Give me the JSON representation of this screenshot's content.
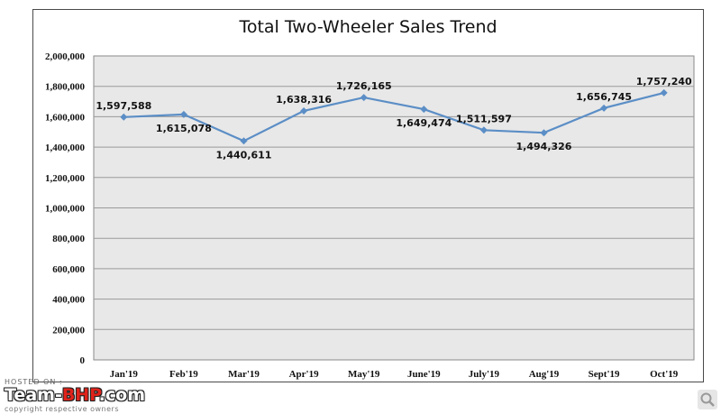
{
  "chart_data": {
    "type": "line",
    "title": "Total Two-Wheeler Sales Trend",
    "categories": [
      "Jan'19",
      "Feb'19",
      "Mar'19",
      "Apr'19",
      "May'19",
      "June'19",
      "July'19",
      "Aug'19",
      "Sept'19",
      "Oct'19"
    ],
    "series": [
      {
        "values": [
          1597588,
          1615078,
          1440611,
          1638316,
          1726165,
          1649474,
          1511597,
          1494326,
          1656745,
          1757240
        ],
        "data_labels": [
          "1,597,588",
          "1,615,078",
          "1,440,611",
          "1,638,316",
          "1,726,165",
          "1,649,474",
          "1,511,597",
          "1,494,326",
          "1,656,745",
          "1,757,240"
        ],
        "color": "#5b8ec6"
      }
    ],
    "y_ticks": [
      "0",
      "200,000",
      "400,000",
      "600,000",
      "800,000",
      "1,000,000",
      "1,200,000",
      "1,400,000",
      "1,600,000",
      "1,800,000",
      "2,000,000"
    ],
    "ylim": [
      0,
      2000000
    ],
    "xlabel": "",
    "ylabel": "",
    "grid": true,
    "plot_background": "#e8e8e8",
    "legend": "none"
  },
  "watermark": {
    "hosted": "HOSTED ON :",
    "brand_main": "Team-",
    "brand_accent": "BHP",
    "brand_tail": ".com",
    "copyright": "copyright respective owners"
  },
  "controls": {
    "zoom_icon": "magnify-icon"
  }
}
